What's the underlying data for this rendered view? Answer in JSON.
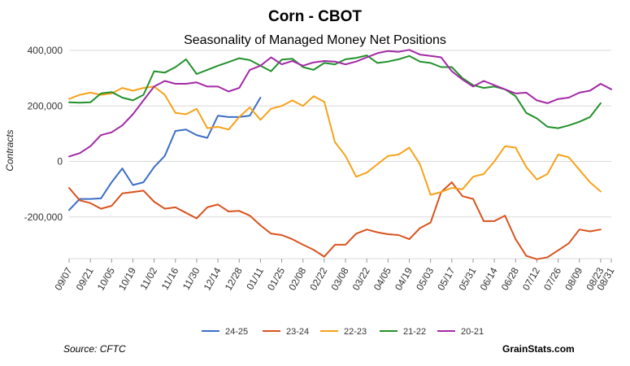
{
  "title": "Corn - CBOT",
  "subtitle": "Seasonality of Managed Money Net Positions",
  "source": "Source: CFTC",
  "brand": "GrainStats.com",
  "chart_data": {
    "type": "line",
    "title": "Corn - CBOT",
    "subtitle": "Seasonality of Managed Money Net Positions",
    "xlabel": "",
    "ylabel": "Contracts",
    "ylim": [
      -350000,
      400000
    ],
    "yticks": [
      400000,
      200000,
      0,
      -200000
    ],
    "ytick_labels": [
      "400,000",
      "200,000",
      "0",
      "-200,000"
    ],
    "x_categories": [
      "09/07",
      "09/21",
      "10/05",
      "10/19",
      "11/02",
      "11/16",
      "11/30",
      "12/14",
      "12/28",
      "01/11",
      "01/25",
      "02/08",
      "02/22",
      "03/08",
      "03/22",
      "04/05",
      "04/19",
      "05/03",
      "05/17",
      "05/31",
      "06/14",
      "06/28",
      "07/12",
      "07/26",
      "08/09",
      "08/23",
      "08/31"
    ],
    "x_positions": [
      0,
      2,
      4,
      6,
      8,
      10,
      12,
      14,
      16,
      18,
      20,
      22,
      24,
      26,
      28,
      30,
      32,
      34,
      36,
      38,
      40,
      42,
      44,
      46,
      48,
      50,
      51
    ],
    "x_range": [
      0,
      51
    ],
    "grid": "horizontal",
    "legend_position": "bottom",
    "series": [
      {
        "name": "24-25",
        "color": "#3b6fc4",
        "x": [
          0,
          1,
          2,
          3,
          4,
          5,
          6,
          7,
          8,
          9,
          10,
          11,
          12,
          13,
          14,
          15,
          16,
          17,
          18
        ],
        "values": [
          -175000,
          -135000,
          -135000,
          -133000,
          -75000,
          -25000,
          -85000,
          -75000,
          -20000,
          20000,
          110000,
          115000,
          95000,
          85000,
          165000,
          160000,
          160000,
          165000,
          230000
        ]
      },
      {
        "name": "23-24",
        "color": "#d9531e",
        "x": [
          0,
          1,
          2,
          3,
          4,
          5,
          6,
          7,
          8,
          9,
          10,
          11,
          12,
          13,
          14,
          15,
          16,
          17,
          18,
          19,
          20,
          21,
          22,
          23,
          24,
          25,
          26,
          27,
          28,
          29,
          30,
          31,
          32,
          33,
          34,
          35,
          36,
          37,
          38,
          39,
          40,
          41,
          42,
          43,
          44,
          45,
          46,
          47,
          48,
          49,
          50
        ],
        "values": [
          -95000,
          -140000,
          -150000,
          -170000,
          -160000,
          -115000,
          -110000,
          -105000,
          -145000,
          -170000,
          -165000,
          -185000,
          -205000,
          -165000,
          -155000,
          -180000,
          -178000,
          -195000,
          -230000,
          -260000,
          -265000,
          -280000,
          -300000,
          -318000,
          -343000,
          -300000,
          -300000,
          -260000,
          -245000,
          -255000,
          -262000,
          -265000,
          -280000,
          -240000,
          -220000,
          -110000,
          -75000,
          -125000,
          -135000,
          -215000,
          -215000,
          -195000,
          -280000,
          -340000,
          -352000,
          -345000,
          -320000,
          -295000,
          -245000,
          -252000,
          -245000
        ]
      },
      {
        "name": "22-23",
        "color": "#f7a21b",
        "x": [
          0,
          1,
          2,
          3,
          4,
          5,
          6,
          7,
          8,
          9,
          10,
          11,
          12,
          13,
          14,
          15,
          16,
          17,
          18,
          19,
          20,
          21,
          22,
          23,
          24,
          25,
          26,
          27,
          28,
          29,
          30,
          31,
          32,
          33,
          34,
          35,
          36,
          37,
          38,
          39,
          40,
          41,
          42,
          43,
          44,
          45,
          46,
          47,
          48,
          49,
          50
        ],
        "values": [
          225000,
          240000,
          248000,
          240000,
          245000,
          265000,
          255000,
          265000,
          270000,
          240000,
          175000,
          170000,
          190000,
          120000,
          125000,
          115000,
          160000,
          195000,
          150000,
          190000,
          200000,
          220000,
          200000,
          235000,
          215000,
          70000,
          20000,
          -55000,
          -40000,
          -10000,
          20000,
          25000,
          50000,
          -10000,
          -120000,
          -110000,
          -95000,
          -100000,
          -55000,
          -45000,
          0,
          55000,
          50000,
          -20000,
          -65000,
          -45000,
          25000,
          15000,
          -30000,
          -75000,
          -108000
        ]
      },
      {
        "name": "21-22",
        "color": "#22912b",
        "x": [
          0,
          1,
          2,
          3,
          4,
          5,
          6,
          7,
          8,
          9,
          10,
          11,
          12,
          13,
          14,
          15,
          16,
          17,
          18,
          19,
          20,
          21,
          22,
          23,
          24,
          25,
          26,
          27,
          28,
          29,
          30,
          31,
          32,
          33,
          34,
          35,
          36,
          37,
          38,
          39,
          40,
          41,
          42,
          43,
          44,
          45,
          46,
          47,
          48,
          49,
          50
        ],
        "values": [
          213000,
          212000,
          213000,
          245000,
          250000,
          230000,
          220000,
          240000,
          325000,
          320000,
          340000,
          368000,
          315000,
          330000,
          345000,
          358000,
          372000,
          365000,
          345000,
          325000,
          367000,
          370000,
          340000,
          330000,
          355000,
          350000,
          368000,
          373000,
          382000,
          355000,
          360000,
          368000,
          380000,
          360000,
          355000,
          340000,
          340000,
          300000,
          275000,
          265000,
          270000,
          260000,
          235000,
          175000,
          155000,
          125000,
          120000,
          130000,
          143000,
          160000,
          210000
        ]
      },
      {
        "name": "20-21",
        "color": "#a22aa6",
        "x": [
          0,
          1,
          2,
          3,
          4,
          5,
          6,
          7,
          8,
          9,
          10,
          11,
          12,
          13,
          14,
          15,
          16,
          17,
          18,
          19,
          20,
          21,
          22,
          23,
          24,
          25,
          26,
          27,
          28,
          29,
          30,
          31,
          32,
          33,
          34,
          35,
          36,
          37,
          38,
          39,
          40,
          41,
          42,
          43,
          44,
          45,
          46,
          47,
          48,
          49,
          50,
          51
        ],
        "values": [
          18000,
          30000,
          55000,
          95000,
          105000,
          130000,
          170000,
          220000,
          270000,
          290000,
          280000,
          280000,
          285000,
          270000,
          270000,
          252000,
          265000,
          330000,
          345000,
          375000,
          350000,
          362000,
          345000,
          357000,
          362000,
          360000,
          350000,
          360000,
          375000,
          390000,
          398000,
          395000,
          402000,
          385000,
          380000,
          375000,
          325000,
          295000,
          270000,
          290000,
          275000,
          260000,
          245000,
          248000,
          220000,
          210000,
          225000,
          230000,
          248000,
          255000,
          280000,
          260000
        ]
      }
    ]
  }
}
